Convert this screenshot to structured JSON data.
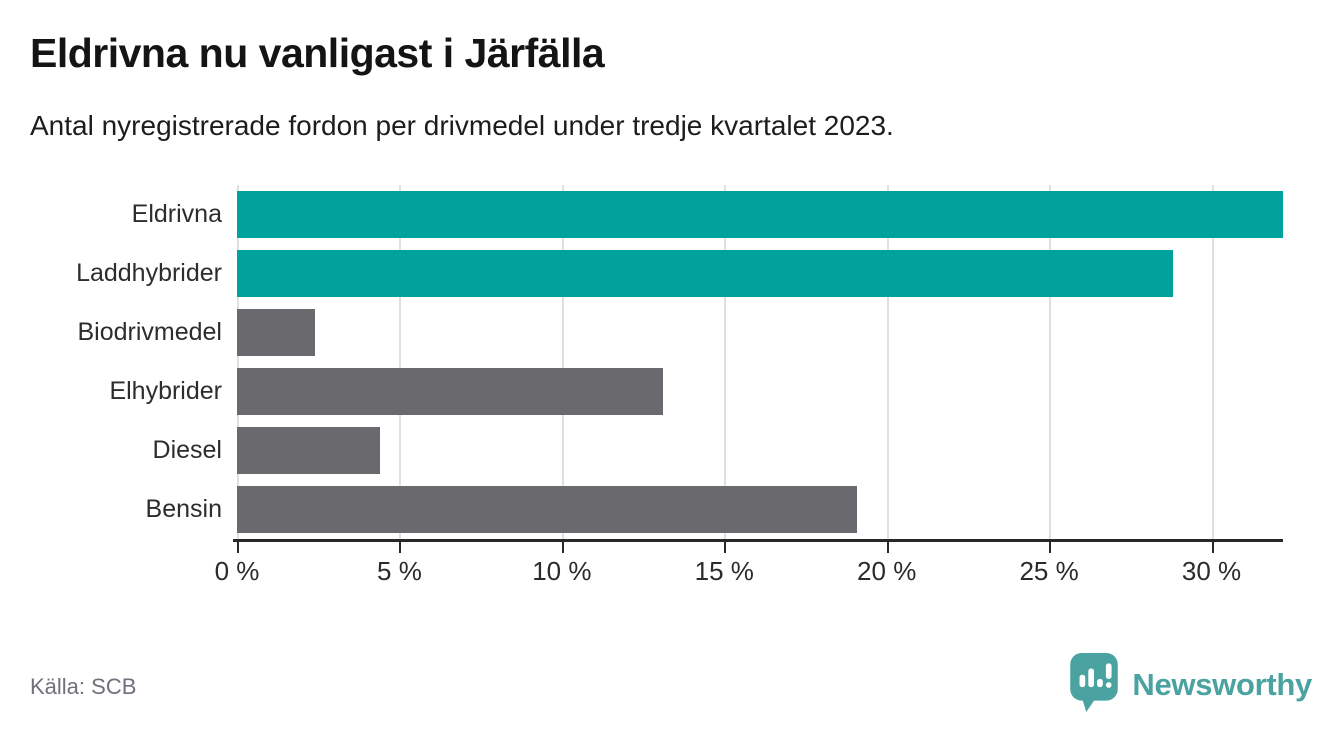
{
  "title": "Eldrivna nu vanligast i Järfälla",
  "subtitle": "Antal nyregistrerade fordon per drivmedel under tredje kvartalet 2023.",
  "source": "Källa: SCB",
  "brand": {
    "name": "Newsworthy",
    "color": "#4aa3a1",
    "icon": "newsworthy-speech-bubble-bar-chart-icon"
  },
  "colors": {
    "highlight_bar": "#00a29b",
    "default_bar": "#6a696e",
    "gridline": "#e0e0e3",
    "axis": "#28282a"
  },
  "chart_data": {
    "type": "bar",
    "orientation": "horizontal",
    "title": "Eldrivna nu vanligast i Järfälla",
    "subtitle": "Antal nyregistrerade fordon per drivmedel under tredje kvartalet 2023.",
    "xlabel": "",
    "ylabel": "",
    "unit": "%",
    "categories": [
      "Eldrivna",
      "Laddhybrider",
      "Biodrivmedel",
      "Elhybrider",
      "Diesel",
      "Bensin"
    ],
    "values": [
      32.2,
      28.8,
      2.4,
      13.1,
      4.4,
      19.1
    ],
    "bar_colors": [
      "#00a29b",
      "#00a29b",
      "#6a696e",
      "#6a696e",
      "#6a696e",
      "#6a696e"
    ],
    "xlim": [
      0,
      32.2
    ],
    "xticks": [
      0,
      5,
      10,
      15,
      20,
      25,
      30
    ],
    "xtick_labels": [
      "0 %",
      "5 %",
      "10 %",
      "15 %",
      "20 %",
      "25 %",
      "30 %"
    ],
    "grid": "vertical-gridlines-behind-bars",
    "legend": "none"
  }
}
